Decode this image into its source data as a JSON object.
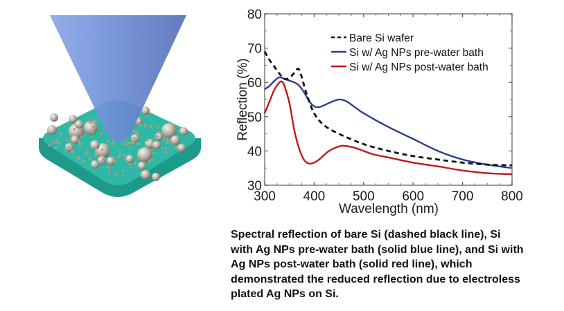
{
  "illustration": {
    "description_icon": "cone-light-beam-over-substrate-with-ag-nanoparticles",
    "colors": {
      "cone": "#6f8fd6",
      "substrate_top": "#2fb8a6",
      "substrate_side": "#1e9a8a",
      "particle": "#b8b2a6"
    }
  },
  "caption": {
    "lines": [
      "Spectral reflection of bare Si (dashed black line), Si",
      "with Ag NPs pre-water bath (solid blue line), and Si with",
      "Ag NPs post-water bath (solid red line), which",
      "demonstrated the reduced reflection due to electroless",
      "plated Ag NPs on Si."
    ]
  },
  "chart_data": {
    "type": "line",
    "title": "",
    "xlabel": "Wavelength (nm)",
    "ylabel": "Reflection (%)",
    "xlim": [
      300,
      800
    ],
    "ylim": [
      30,
      80
    ],
    "xticks": [
      300,
      400,
      500,
      600,
      700,
      800
    ],
    "yticks": [
      30,
      40,
      50,
      60,
      70,
      80
    ],
    "xtick_labels": [
      "300",
      "400",
      "500",
      "600",
      "700",
      "800"
    ],
    "ytick_labels": [
      "30",
      "40",
      "50",
      "60",
      "70",
      "80"
    ],
    "grid": false,
    "legend_position": "top-right",
    "series": [
      {
        "name": "Bare Si wafer",
        "color": "#111111",
        "style": "dashed",
        "x": [
          300,
          310,
          320,
          330,
          340,
          350,
          360,
          368,
          375,
          385,
          400,
          420,
          450,
          500,
          550,
          600,
          650,
          700,
          750,
          800
        ],
        "y": [
          69,
          66.5,
          64.5,
          62.5,
          61,
          61.3,
          62.8,
          64,
          61.5,
          56.5,
          51,
          47.5,
          45,
          42,
          40,
          38.5,
          37.5,
          36.6,
          36,
          35.8
        ]
      },
      {
        "name": "Si w/ Ag NPs pre-water bath",
        "color": "#2b3f8f",
        "style": "solid",
        "x": [
          300,
          310,
          320,
          330,
          340,
          350,
          360,
          370,
          380,
          390,
          400,
          410,
          420,
          435,
          450,
          465,
          480,
          500,
          550,
          600,
          650,
          700,
          750,
          800
        ],
        "y": [
          58,
          59,
          60.5,
          61.5,
          61,
          60.5,
          60,
          59,
          57,
          54.5,
          53,
          52.8,
          53.3,
          54.3,
          55,
          54.5,
          53,
          51,
          47,
          43.5,
          40,
          37.5,
          36,
          35
        ]
      },
      {
        "name": "Si w/ Ag NPs post-water bath",
        "color": "#c0171d",
        "style": "solid",
        "x": [
          300,
          310,
          320,
          330,
          335,
          340,
          350,
          360,
          370,
          380,
          390,
          400,
          410,
          430,
          450,
          460,
          480,
          500,
          520,
          560,
          600,
          650,
          700,
          750,
          800
        ],
        "y": [
          51,
          54.5,
          58,
          60,
          60.2,
          59,
          54,
          46,
          40.5,
          37.3,
          36.3,
          36.6,
          37.5,
          40,
          41.3,
          41.5,
          41,
          40,
          39,
          37.8,
          36.6,
          35.5,
          34.3,
          33.5,
          33.2
        ]
      }
    ]
  }
}
